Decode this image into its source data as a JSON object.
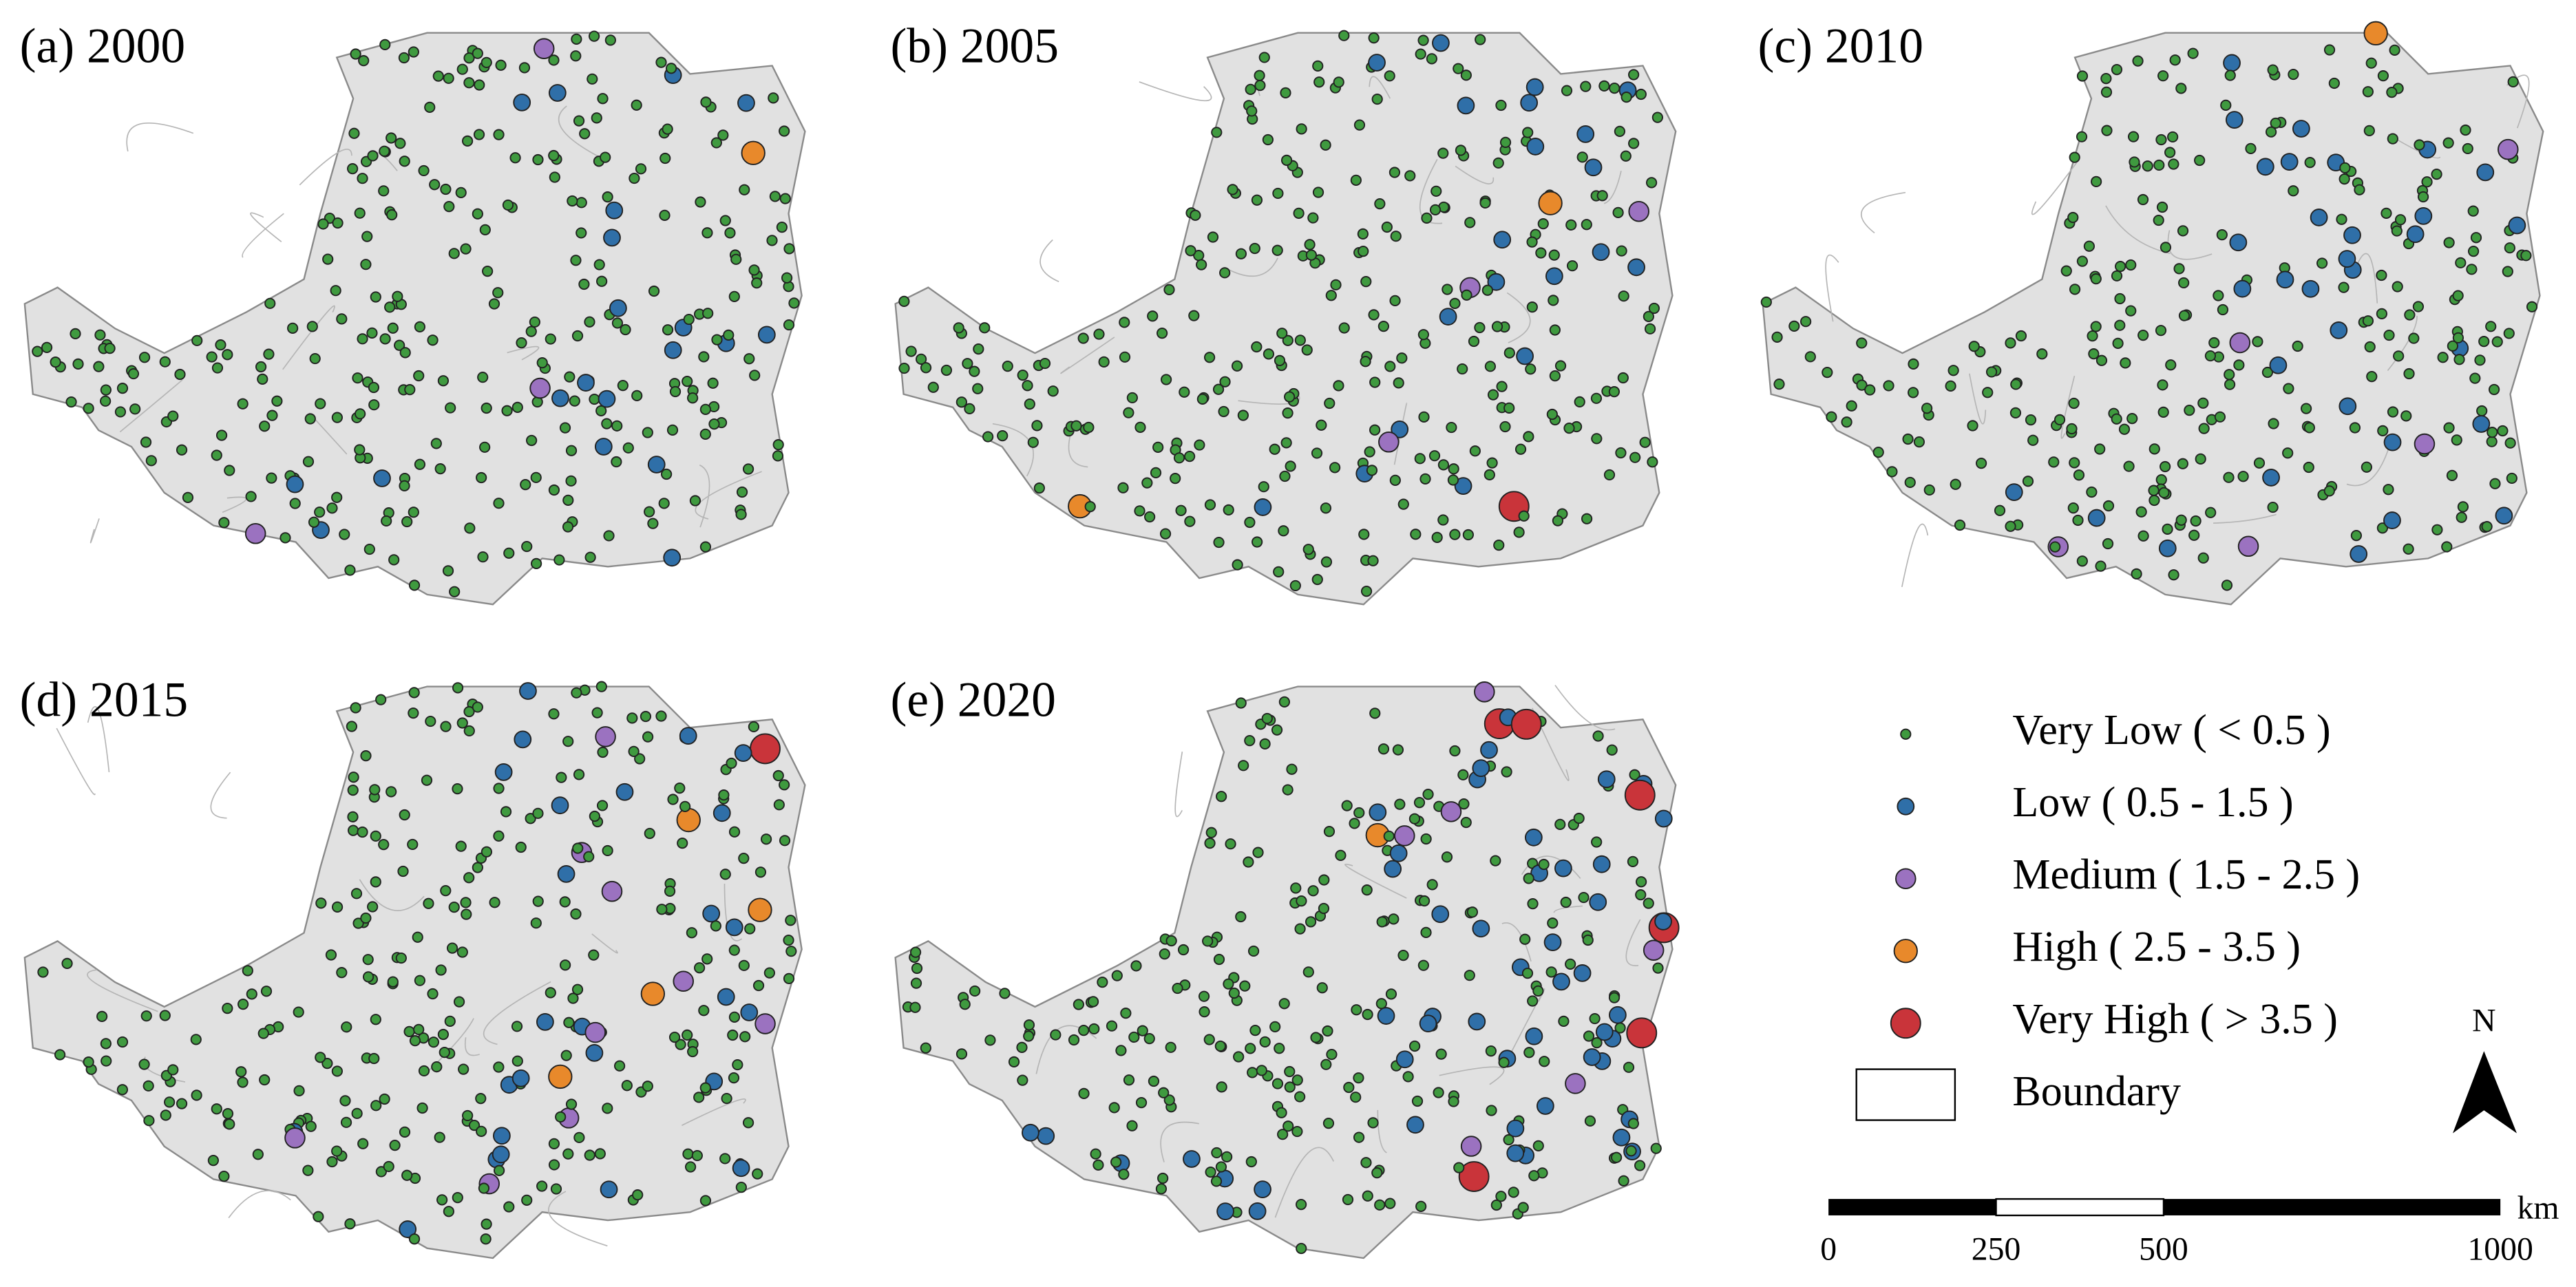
{
  "panels": [
    {
      "title": "(a) 2000"
    },
    {
      "title": "(b) 2005"
    },
    {
      "title": "(c) 2010"
    },
    {
      "title": "(d) 2015"
    },
    {
      "title": "(e) 2020"
    }
  ],
  "legend": {
    "items": [
      "Very Low ( < 0.5 )",
      "Low ( 0.5 - 1.5 )",
      "Medium ( 1.5 - 2.5 )",
      "High ( 2.5 - 3.5 )",
      "Very High ( > 3.5 )"
    ],
    "boundary": "Boundary"
  },
  "north": "N",
  "scale_bar": {
    "labels": [
      "0",
      "250",
      "500",
      "1000"
    ],
    "unit": "km"
  }
}
